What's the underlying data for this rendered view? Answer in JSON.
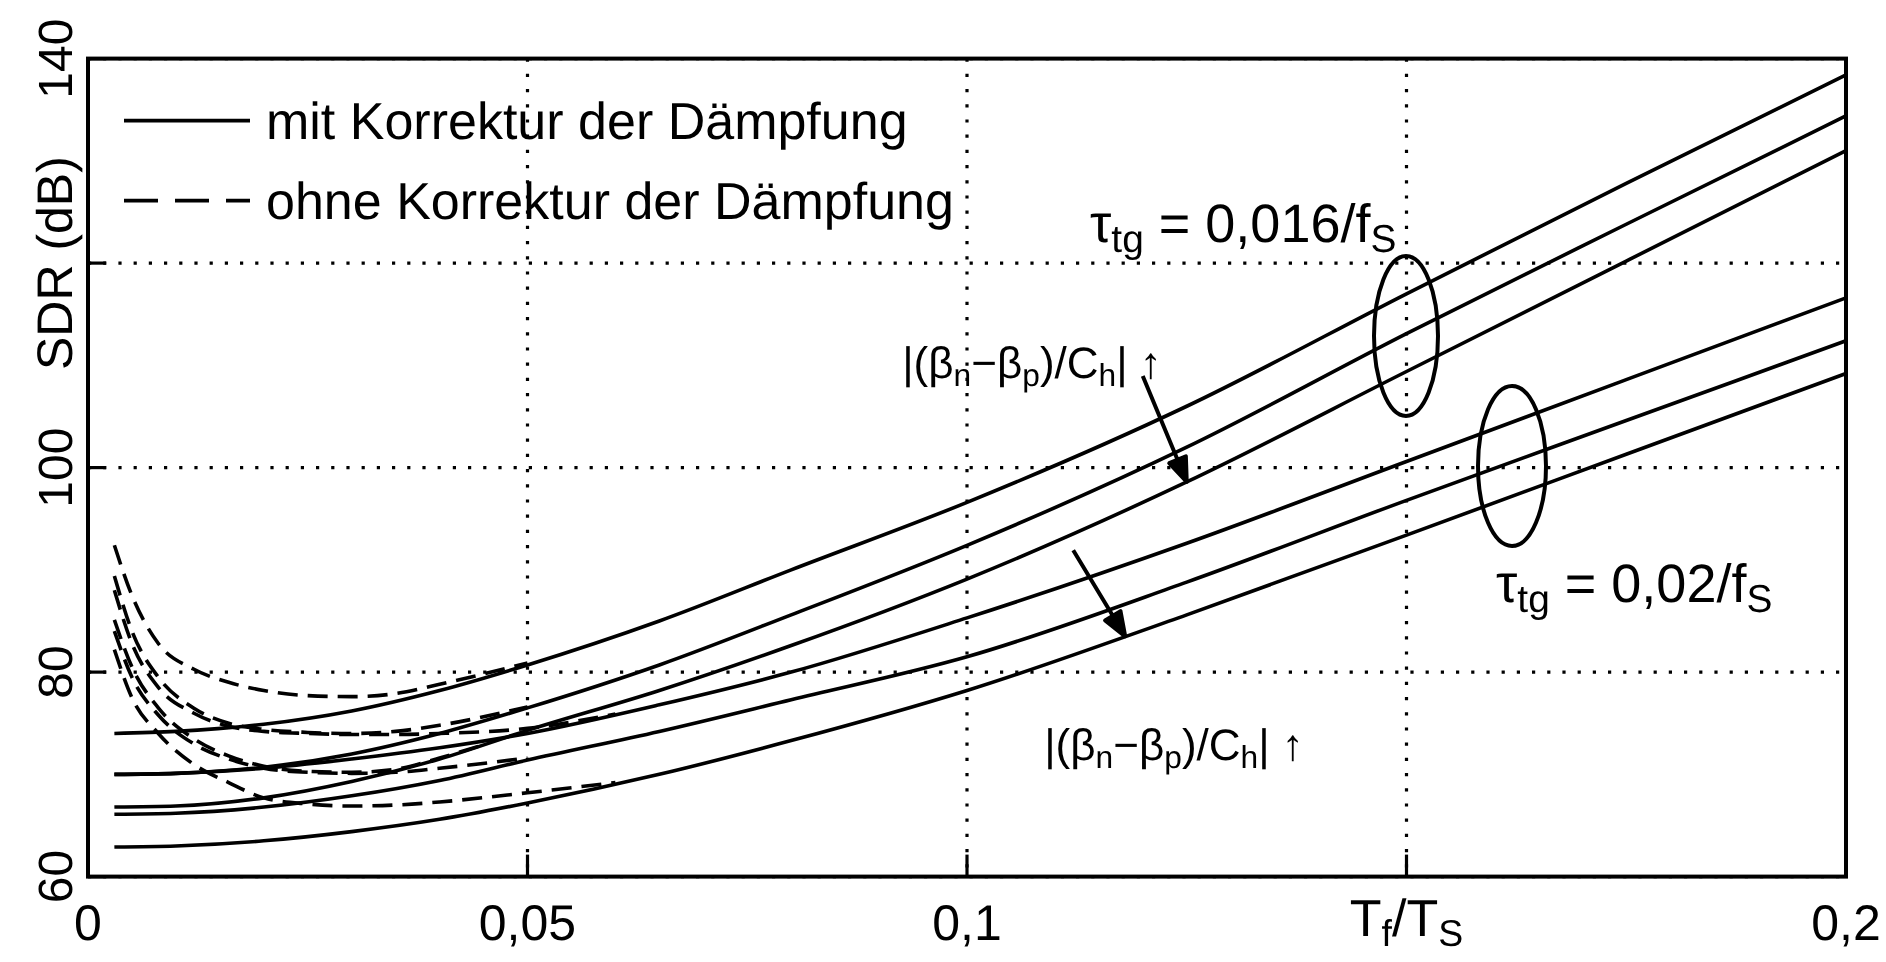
{
  "chart_data": {
    "type": "line",
    "xlabel": "T$_{f}$/T$_{S}$",
    "ylabel": "SDR (dB)",
    "xlim": [
      0,
      0.2
    ],
    "ylim": [
      60,
      140
    ],
    "xticks": [
      0,
      {
        "value": 0.05,
        "label": "0,05"
      },
      {
        "value": 0.1,
        "label": "0,1"
      },
      {
        "value": 0.15,
        "label": null
      },
      {
        "value": 0.2,
        "label": "0,2"
      }
    ],
    "yticks": [
      60,
      80,
      100,
      {
        "value": 120,
        "label": null
      },
      140
    ],
    "grid": true,
    "legend": "top left",
    "series": [
      {
        "name": "mit Korrektur der Dämpfung",
        "color": "#000000",
        "line_style": "solid",
        "x": [
          0.003,
          0.01,
          0.02,
          0.03,
          0.04,
          0.05,
          0.065,
          0.08,
          0.1,
          0.125,
          0.15,
          0.175,
          0.2
        ],
        "values": [
          74,
          74.2,
          74.9,
          76.2,
          78.2,
          80.7,
          85,
          90,
          96.6,
          106,
          117,
          127.8,
          138.4
        ]
      },
      {
        "color": "#000000",
        "line_style": "solid",
        "x": [
          0.003,
          0.01,
          0.02,
          0.03,
          0.04,
          0.05,
          0.065,
          0.08,
          0.1,
          0.125,
          0.15,
          0.175,
          0.2
        ],
        "values": [
          70,
          70.1,
          70.7,
          72,
          74,
          76.5,
          80.7,
          85.6,
          92.4,
          102,
          113.1,
          123.8,
          134.4
        ]
      },
      {
        "color": "#000000",
        "line_style": "solid",
        "x": [
          0.003,
          0.01,
          0.02,
          0.03,
          0.04,
          0.05,
          0.065,
          0.08,
          0.1,
          0.125,
          0.15,
          0.175,
          0.2
        ],
        "values": [
          66.8,
          66.9,
          67.7,
          69.3,
          71.5,
          74.3,
          78.2,
          82.6,
          89.1,
          98.6,
          109.4,
          120.2,
          131
        ]
      },
      {
        "color": "#000000",
        "line_style": "solid",
        "x": [
          0.003,
          0.01,
          0.02,
          0.03,
          0.04,
          0.05,
          0.065,
          0.08,
          0.1,
          0.125,
          0.15,
          0.175,
          0.2
        ],
        "values": [
          70,
          70.1,
          70.6,
          71.5,
          72.6,
          74,
          76.8,
          80,
          85.3,
          92.6,
          100.6,
          108.6,
          116.6
        ]
      },
      {
        "color": "#000000",
        "line_style": "solid",
        "x": [
          0.003,
          0.01,
          0.02,
          0.03,
          0.04,
          0.05,
          0.065,
          0.08,
          0.1,
          0.125,
          0.15,
          0.175,
          0.2
        ],
        "values": [
          66.1,
          66.2,
          66.8,
          67.9,
          69.4,
          71.4,
          74.2,
          77.3,
          81.5,
          88.8,
          96.8,
          104.6,
          112.4
        ]
      },
      {
        "color": "#000000",
        "line_style": "solid",
        "x": [
          0.003,
          0.01,
          0.02,
          0.03,
          0.04,
          0.05,
          0.065,
          0.08,
          0.1,
          0.125,
          0.15,
          0.175,
          0.2
        ],
        "values": [
          62.9,
          63,
          63.5,
          64.4,
          65.6,
          67.2,
          70,
          73.3,
          78.2,
          85.6,
          93.4,
          101.3,
          109.2
        ]
      },
      {
        "name": "ohne Korrektur der Dämpfung",
        "color": "#000000",
        "line_style": "dashed",
        "x": [
          0.003,
          0.005,
          0.008,
          0.012,
          0.016,
          0.02,
          0.025,
          0.03,
          0.035,
          0.04,
          0.05
        ],
        "values": [
          92.4,
          87.5,
          82.8,
          80.3,
          79,
          78.2,
          77.7,
          77.6,
          77.9,
          78.8,
          80.9
        ]
      },
      {
        "color": "#000000",
        "line_style": "dashed",
        "x": [
          0.003,
          0.005,
          0.008,
          0.012,
          0.016,
          0.02,
          0.025,
          0.03,
          0.035,
          0.04,
          0.05
        ],
        "values": [
          89.4,
          84,
          79.5,
          76.5,
          75,
          74.4,
          74.1,
          74,
          74.2,
          74.8,
          76.6
        ]
      },
      {
        "color": "#000000",
        "line_style": "dashed",
        "x": [
          0.003,
          0.005,
          0.008,
          0.012,
          0.016,
          0.02,
          0.025,
          0.03,
          0.035,
          0.04,
          0.05,
          0.06
        ],
        "values": [
          88,
          82.8,
          78.5,
          76,
          74.7,
          74.2,
          74,
          73.9,
          73.9,
          74,
          74.5,
          75.9
        ]
      },
      {
        "color": "#000000",
        "line_style": "dashed",
        "x": [
          0.003,
          0.005,
          0.008,
          0.012,
          0.016,
          0.02,
          0.025,
          0.03,
          0.035,
          0.04,
          0.045
        ],
        "values": [
          85.1,
          80.5,
          76.5,
          73.5,
          71.8,
          70.8,
          70.3,
          70.2,
          70.5,
          71.6,
          72.9
        ]
      },
      {
        "color": "#000000",
        "line_style": "dashed",
        "x": [
          0.003,
          0.005,
          0.008,
          0.012,
          0.016,
          0.02,
          0.025,
          0.03,
          0.035,
          0.04,
          0.05
        ],
        "values": [
          84,
          79.5,
          75.8,
          73,
          71.5,
          70.6,
          70.2,
          70.1,
          70.2,
          70.6,
          71.6
        ]
      },
      {
        "color": "#000000",
        "line_style": "dashed",
        "x": [
          0.003,
          0.005,
          0.008,
          0.012,
          0.016,
          0.02,
          0.025,
          0.03,
          0.035,
          0.04,
          0.05,
          0.06
        ],
        "values": [
          82.2,
          77.5,
          74,
          71,
          69.2,
          67.7,
          67.1,
          66.9,
          67,
          67.3,
          68.2,
          69.2
        ]
      }
    ],
    "annotations": [
      "τ$_{tg}$ = 0,016/f$_{S}$",
      "τ$_{tg}$ = 0,02/f$_{S}$",
      {
        "text": "|(β$_{n}$−β$_{p}$)/C$_{h}$| ↑",
        "x": 0.125,
        "y": 98.6
      },
      {
        "text": "|(β$_{n}$−β$_{p}$)/C$_{h}$| ↑",
        "x": 0.118,
        "y": 83.5
      }
    ]
  }
}
